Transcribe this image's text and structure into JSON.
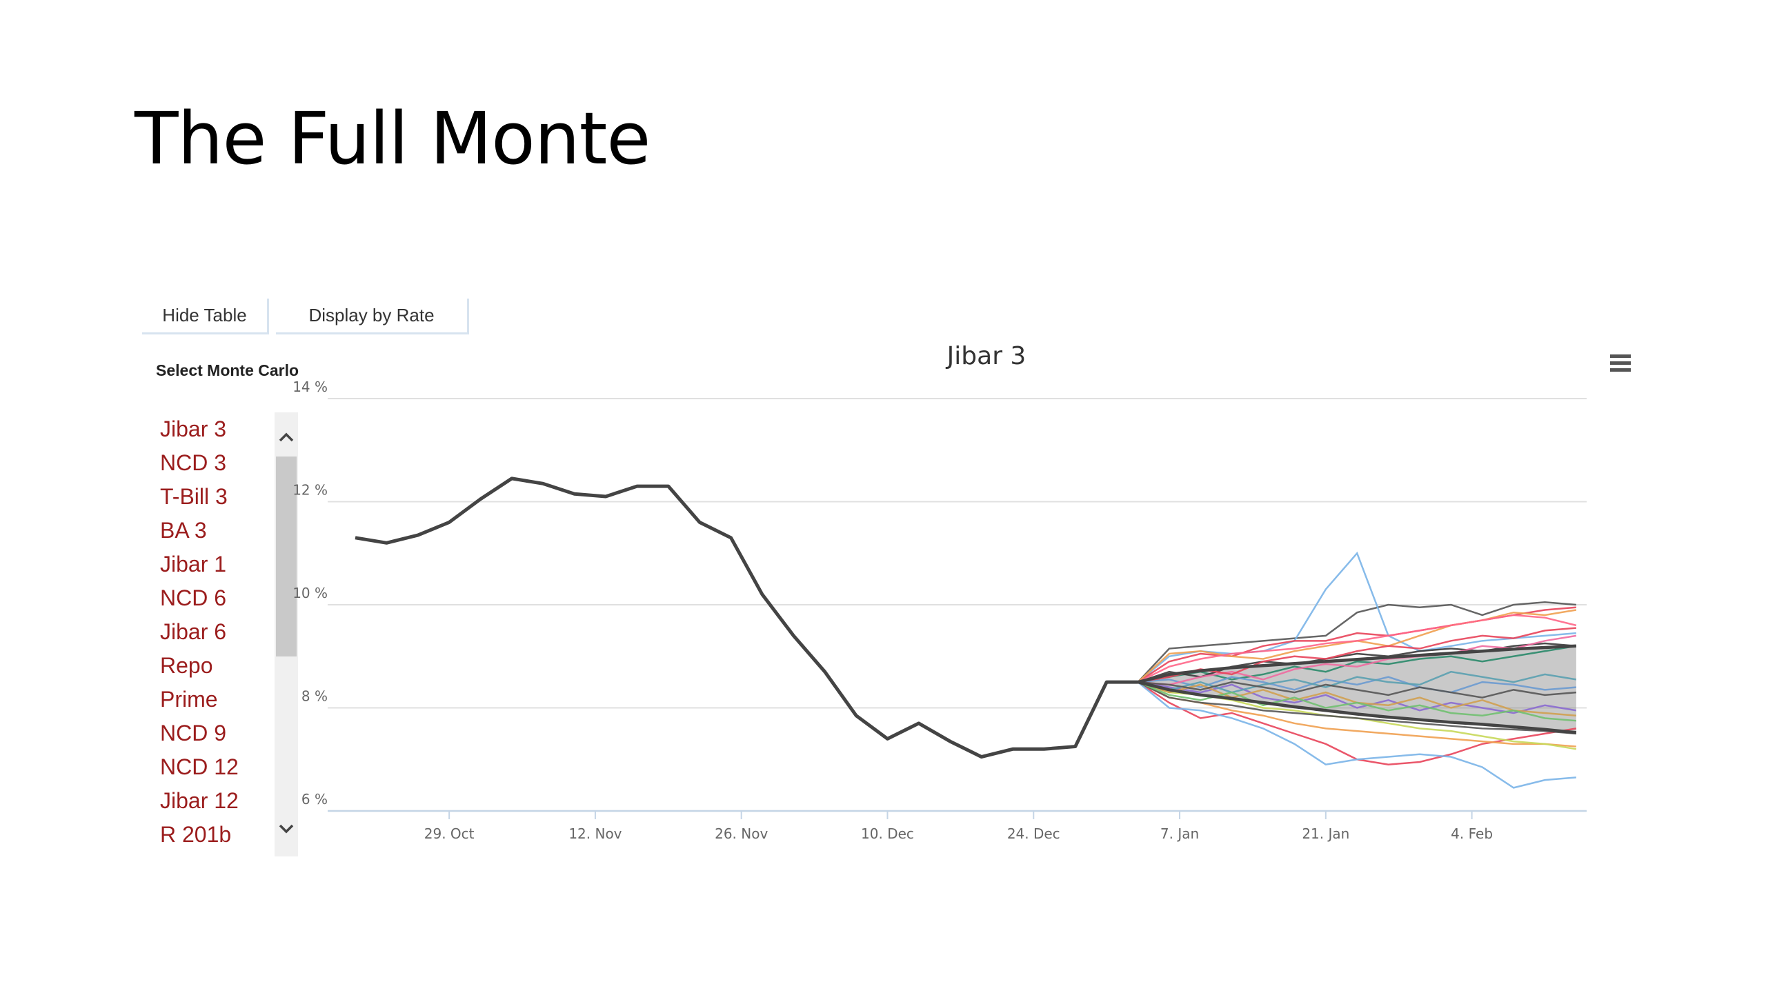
{
  "slide": {
    "title": "The Full Monte"
  },
  "buttons": {
    "hide_table": "Hide Table",
    "display_by_rate": "Display by Rate"
  },
  "sidebar": {
    "label": "Select Monte Carlo",
    "items": [
      "Jibar 3",
      "NCD 3",
      "T-Bill 3",
      "BA 3",
      "Jibar 1",
      "NCD 6",
      "Jibar 6",
      "Repo",
      "Prime",
      "NCD 9",
      "NCD 12",
      "Jibar 12",
      "R 201b"
    ]
  },
  "icons": {
    "menu": "hamburger-menu-icon",
    "scroll_up": "chevron-up-icon",
    "scroll_down": "chevron-down-icon"
  },
  "chart_data": {
    "type": "line",
    "title": "Jibar 3",
    "xlabel": "",
    "ylabel": "",
    "y_unit": "%",
    "ylim": [
      6,
      14
    ],
    "y_ticks": [
      "6 %",
      "8 %",
      "10 %",
      "12 %",
      "14 %"
    ],
    "x_range": [
      "2014-10-20",
      "2015-02-15"
    ],
    "x_ticks": [
      {
        "label": "29. Oct",
        "date": "2014-10-29"
      },
      {
        "label": "12. Nov",
        "date": "2014-11-12"
      },
      {
        "label": "26. Nov",
        "date": "2014-11-26"
      },
      {
        "label": "10. Dec",
        "date": "2014-12-10"
      },
      {
        "label": "24. Dec",
        "date": "2014-12-24"
      },
      {
        "label": "7. Jan",
        "date": "2015-01-07"
      },
      {
        "label": "21. Jan",
        "date": "2015-01-21"
      },
      {
        "label": "4. Feb",
        "date": "2015-02-04"
      }
    ],
    "grid": true,
    "legend": "none",
    "colors": {
      "history": "#444444",
      "band_fill": "#888888",
      "axis": "#c5d5e6",
      "grid": "#e0e0e0"
    },
    "history": {
      "x": [
        "2014-10-20",
        "2014-10-23",
        "2014-10-26",
        "2014-10-29",
        "2014-11-01",
        "2014-11-04",
        "2014-11-07",
        "2014-11-10",
        "2014-11-13",
        "2014-11-16",
        "2014-11-19",
        "2014-11-22",
        "2014-11-25",
        "2014-11-28",
        "2014-12-01",
        "2014-12-04",
        "2014-12-07",
        "2014-12-10",
        "2014-12-13",
        "2014-12-16",
        "2014-12-19",
        "2014-12-22",
        "2014-12-25",
        "2014-12-28",
        "2014-12-31",
        "2015-01-03"
      ],
      "y": [
        11.3,
        11.2,
        11.35,
        11.6,
        12.05,
        12.45,
        12.35,
        12.15,
        12.1,
        12.3,
        12.3,
        11.6,
        11.3,
        10.2,
        9.4,
        8.7,
        7.85,
        7.4,
        7.7,
        7.35,
        7.05,
        7.2,
        7.2,
        7.25,
        8.5,
        8.5
      ]
    },
    "forecast_x": [
      "2015-01-03",
      "2015-01-06",
      "2015-01-09",
      "2015-01-12",
      "2015-01-15",
      "2015-01-18",
      "2015-01-21",
      "2015-01-24",
      "2015-01-27",
      "2015-01-30",
      "2015-02-02",
      "2015-02-05",
      "2015-02-08",
      "2015-02-11",
      "2015-02-14"
    ],
    "band": {
      "upper": [
        8.5,
        8.65,
        8.72,
        8.78,
        8.82,
        8.86,
        8.9,
        8.94,
        8.98,
        9.02,
        9.06,
        9.1,
        9.14,
        9.17,
        9.2
      ],
      "lower": [
        8.5,
        8.35,
        8.25,
        8.18,
        8.1,
        8.02,
        7.95,
        7.88,
        7.82,
        7.77,
        7.72,
        7.68,
        7.63,
        7.58,
        7.52
      ]
    },
    "series": [
      {
        "color": "#555555",
        "values": [
          8.5,
          9.15,
          9.2,
          9.25,
          9.3,
          9.35,
          9.4,
          9.85,
          10.0,
          9.95,
          10.0,
          9.8,
          10.0,
          10.05,
          10.0
        ]
      },
      {
        "color": "#7ab4e8",
        "values": [
          8.5,
          9.0,
          9.1,
          9.05,
          9.1,
          9.3,
          10.3,
          11.0,
          9.4,
          9.1,
          9.2,
          9.3,
          9.35,
          9.4,
          9.45
        ]
      },
      {
        "color": "#e8445a",
        "values": [
          8.5,
          8.9,
          9.05,
          9.0,
          9.2,
          9.3,
          9.3,
          9.45,
          9.4,
          9.5,
          9.6,
          9.7,
          9.8,
          9.9,
          9.95
        ]
      },
      {
        "color": "#f0a050",
        "values": [
          8.5,
          9.05,
          9.1,
          9.0,
          8.95,
          9.1,
          9.2,
          9.3,
          9.2,
          9.4,
          9.6,
          9.7,
          9.85,
          9.8,
          9.9
        ]
      },
      {
        "color": "#ff6688",
        "values": [
          8.5,
          8.8,
          8.95,
          9.05,
          9.1,
          9.15,
          9.25,
          9.3,
          9.4,
          9.5,
          9.6,
          9.7,
          9.8,
          9.75,
          9.6
        ]
      },
      {
        "color": "#e8445a",
        "values": [
          8.5,
          8.1,
          7.8,
          7.9,
          7.7,
          7.5,
          7.3,
          7.0,
          6.9,
          6.95,
          7.1,
          7.3,
          7.4,
          7.5,
          7.6
        ]
      },
      {
        "color": "#7ab4e8",
        "values": [
          8.5,
          8.0,
          7.95,
          7.8,
          7.6,
          7.3,
          6.9,
          7.0,
          7.05,
          7.1,
          7.05,
          6.85,
          6.45,
          6.6,
          6.65
        ]
      },
      {
        "color": "#f0a050",
        "values": [
          8.5,
          8.2,
          8.1,
          7.95,
          7.85,
          7.7,
          7.6,
          7.55,
          7.5,
          7.45,
          7.4,
          7.35,
          7.3,
          7.3,
          7.25
        ]
      },
      {
        "color": "#c8d85a",
        "values": [
          8.5,
          8.3,
          8.25,
          8.15,
          8.0,
          7.95,
          7.85,
          7.8,
          7.7,
          7.6,
          7.55,
          7.45,
          7.35,
          7.3,
          7.2
        ]
      },
      {
        "color": "#555555",
        "values": [
          8.5,
          8.2,
          8.1,
          8.05,
          7.95,
          7.9,
          7.85,
          7.8,
          7.75,
          7.7,
          7.65,
          7.6,
          7.58,
          7.55,
          7.5
        ]
      },
      {
        "color": "#2a8a6a",
        "values": [
          8.5,
          8.6,
          8.7,
          8.55,
          8.65,
          8.8,
          8.7,
          8.9,
          8.85,
          8.95,
          9.0,
          8.9,
          9.0,
          9.1,
          9.2
        ]
      },
      {
        "color": "#8a6ad0",
        "values": [
          8.5,
          8.4,
          8.3,
          8.45,
          8.2,
          8.1,
          8.25,
          8.0,
          8.15,
          7.95,
          8.1,
          8.0,
          7.9,
          8.05,
          7.95
        ]
      },
      {
        "color": "#6a9ad0",
        "values": [
          8.5,
          8.55,
          8.4,
          8.6,
          8.5,
          8.35,
          8.55,
          8.45,
          8.6,
          8.4,
          8.3,
          8.5,
          8.45,
          8.35,
          8.4
        ]
      },
      {
        "color": "#d0a050",
        "values": [
          8.5,
          8.3,
          8.45,
          8.2,
          8.35,
          8.15,
          8.3,
          8.1,
          8.05,
          8.2,
          8.0,
          8.15,
          7.95,
          7.9,
          7.85
        ]
      },
      {
        "color": "#3a3a3a",
        "values": [
          8.5,
          8.7,
          8.6,
          8.8,
          8.9,
          8.85,
          8.95,
          9.05,
          9.0,
          9.1,
          9.15,
          9.1,
          9.2,
          9.25,
          9.2
        ]
      },
      {
        "color": "#f06aa0",
        "values": [
          8.5,
          8.45,
          8.6,
          8.7,
          8.55,
          8.75,
          8.85,
          8.8,
          8.95,
          9.0,
          9.05,
          9.2,
          9.15,
          9.3,
          9.4
        ]
      },
      {
        "color": "#5aa0b0",
        "values": [
          8.5,
          8.35,
          8.5,
          8.3,
          8.45,
          8.55,
          8.4,
          8.6,
          8.5,
          8.45,
          8.7,
          8.6,
          8.5,
          8.65,
          8.55
        ]
      },
      {
        "color": "#e8445a",
        "values": [
          8.5,
          8.6,
          8.75,
          8.65,
          8.9,
          9.0,
          8.95,
          9.1,
          9.2,
          9.15,
          9.3,
          9.4,
          9.35,
          9.5,
          9.55
        ]
      },
      {
        "color": "#70c070",
        "values": [
          8.5,
          8.25,
          8.15,
          8.3,
          8.05,
          8.2,
          8.0,
          8.1,
          7.95,
          8.05,
          7.9,
          7.85,
          7.95,
          7.8,
          7.75
        ]
      },
      {
        "color": "#555555",
        "values": [
          8.5,
          8.45,
          8.35,
          8.5,
          8.4,
          8.3,
          8.45,
          8.35,
          8.25,
          8.4,
          8.3,
          8.2,
          8.35,
          8.25,
          8.3
        ]
      }
    ]
  }
}
